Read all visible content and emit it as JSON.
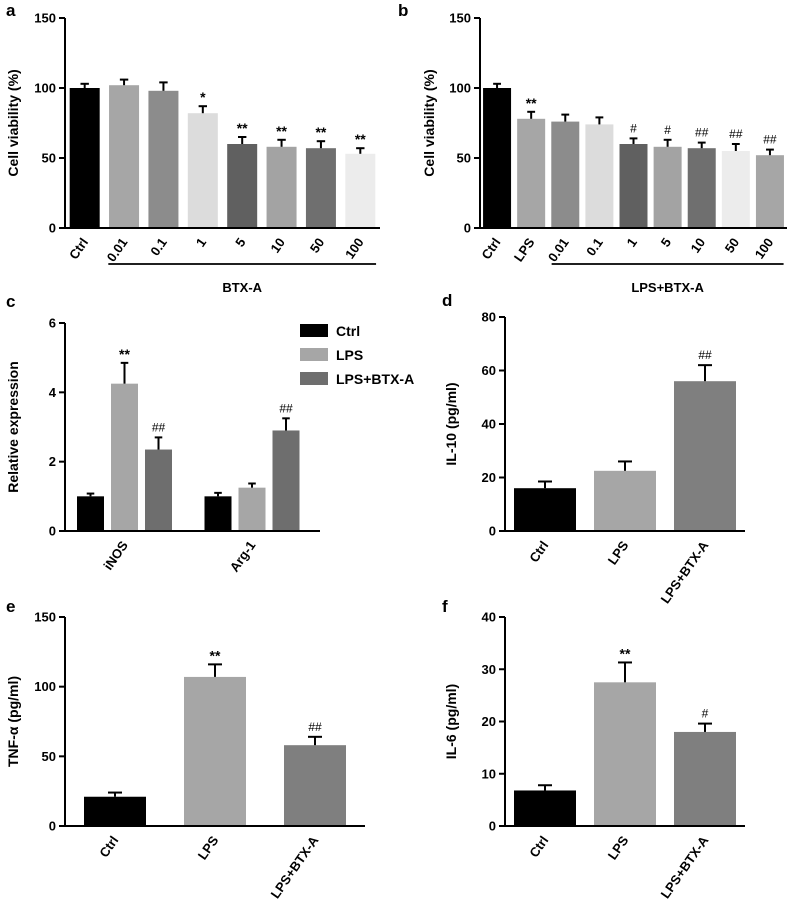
{
  "chart_data": [
    {
      "id": "a",
      "type": "bar",
      "letter": "a",
      "title": "",
      "xlabel": "",
      "ylabel": "Cell viability (%)",
      "ylim": [
        0,
        150
      ],
      "yticks": [
        0,
        50,
        100,
        150
      ],
      "categories": [
        "Ctrl",
        "0.01",
        "0.1",
        "1",
        "5",
        "10",
        "50",
        "100"
      ],
      "values": [
        100,
        102,
        98,
        82,
        60,
        58,
        57,
        53
      ],
      "errors": [
        3,
        4,
        6,
        5,
        5,
        5,
        5,
        4
      ],
      "bar_colors": [
        "#000000",
        "#a6a6a6",
        "#8c8c8c",
        "#dcdcdc",
        "#606060",
        "#a3a3a3",
        "#6f6f6f",
        "#ececec"
      ],
      "annotations": [
        "",
        "",
        "",
        "*",
        "**",
        "**",
        "**",
        "**"
      ],
      "group_label": "BTX-A",
      "group_start": 1,
      "group_end": 7
    },
    {
      "id": "b",
      "type": "bar",
      "letter": "b",
      "title": "",
      "xlabel": "",
      "ylabel": "Cell viability (%)",
      "ylim": [
        0,
        150
      ],
      "yticks": [
        0,
        50,
        100,
        150
      ],
      "categories": [
        "Ctrl",
        "LPS",
        "0.01",
        "0.1",
        "1",
        "5",
        "10",
        "50",
        "100"
      ],
      "values": [
        100,
        78,
        76,
        74,
        60,
        58,
        57,
        55,
        52
      ],
      "errors": [
        3,
        5,
        5,
        5,
        4,
        5,
        4,
        5,
        4
      ],
      "bar_colors": [
        "#000000",
        "#a6a6a6",
        "#8c8c8c",
        "#dcdcdc",
        "#606060",
        "#a3a3a3",
        "#6f6f6f",
        "#ececec",
        "#a6a6a6"
      ],
      "annotations": [
        "",
        "**",
        "",
        "",
        "#",
        "#",
        "##",
        "##",
        "##"
      ],
      "group_label": "LPS+BTX-A",
      "group_start": 2,
      "group_end": 8
    },
    {
      "id": "c",
      "type": "bar",
      "letter": "c",
      "title": "",
      "xlabel": "",
      "ylabel": "Relative expression",
      "ylim": [
        0,
        6
      ],
      "yticks": [
        0,
        2,
        4,
        6
      ],
      "categories": [
        "iNOS",
        "Arg-1"
      ],
      "series": [
        {
          "name": "Ctrl",
          "color": "#000000",
          "values": [
            1.0,
            1.0
          ],
          "errors": [
            0.08,
            0.1
          ],
          "annotations": [
            "",
            ""
          ]
        },
        {
          "name": "LPS",
          "color": "#a6a6a6",
          "values": [
            4.25,
            1.25
          ],
          "errors": [
            0.6,
            0.12
          ],
          "annotations": [
            "**",
            ""
          ]
        },
        {
          "name": "LPS+BTX-A",
          "color": "#6e6e6e",
          "values": [
            2.35,
            2.9
          ],
          "errors": [
            0.35,
            0.35
          ],
          "annotations": [
            "##",
            "##"
          ]
        }
      ],
      "legend_position": "top-right"
    },
    {
      "id": "d",
      "type": "bar",
      "letter": "d",
      "title": "",
      "xlabel": "",
      "ylabel": "IL-10 (pg/ml)",
      "ylim": [
        0,
        80
      ],
      "yticks": [
        0,
        20,
        40,
        60,
        80
      ],
      "categories": [
        "Ctrl",
        "LPS",
        "LPS+BTX-A"
      ],
      "values": [
        16,
        22.5,
        56
      ],
      "errors": [
        2.5,
        3.5,
        6
      ],
      "bar_colors": [
        "#000000",
        "#a6a6a6",
        "#7f7f7f"
      ],
      "annotations": [
        "",
        "",
        "##"
      ]
    },
    {
      "id": "e",
      "type": "bar",
      "letter": "e",
      "title": "",
      "xlabel": "",
      "ylabel": "TNF-α (pg/ml)",
      "ylim": [
        0,
        150
      ],
      "yticks": [
        0,
        50,
        100,
        150
      ],
      "categories": [
        "Ctrl",
        "LPS",
        "LPS+BTX-A"
      ],
      "values": [
        21,
        107,
        58
      ],
      "errors": [
        3,
        9,
        6
      ],
      "bar_colors": [
        "#000000",
        "#a6a6a6",
        "#7f7f7f"
      ],
      "annotations": [
        "",
        "**",
        "##"
      ]
    },
    {
      "id": "f",
      "type": "bar",
      "letter": "f",
      "title": "",
      "xlabel": "",
      "ylabel": "IL-6 (pg/ml)",
      "ylim": [
        0,
        40
      ],
      "yticks": [
        0,
        10,
        20,
        30,
        40
      ],
      "categories": [
        "Ctrl",
        "LPS",
        "LPS+BTX-A"
      ],
      "values": [
        6.8,
        27.5,
        18
      ],
      "errors": [
        1.0,
        3.8,
        1.6
      ],
      "bar_colors": [
        "#000000",
        "#a6a6a6",
        "#7f7f7f"
      ],
      "annotations": [
        "",
        "**",
        "#"
      ]
    }
  ]
}
